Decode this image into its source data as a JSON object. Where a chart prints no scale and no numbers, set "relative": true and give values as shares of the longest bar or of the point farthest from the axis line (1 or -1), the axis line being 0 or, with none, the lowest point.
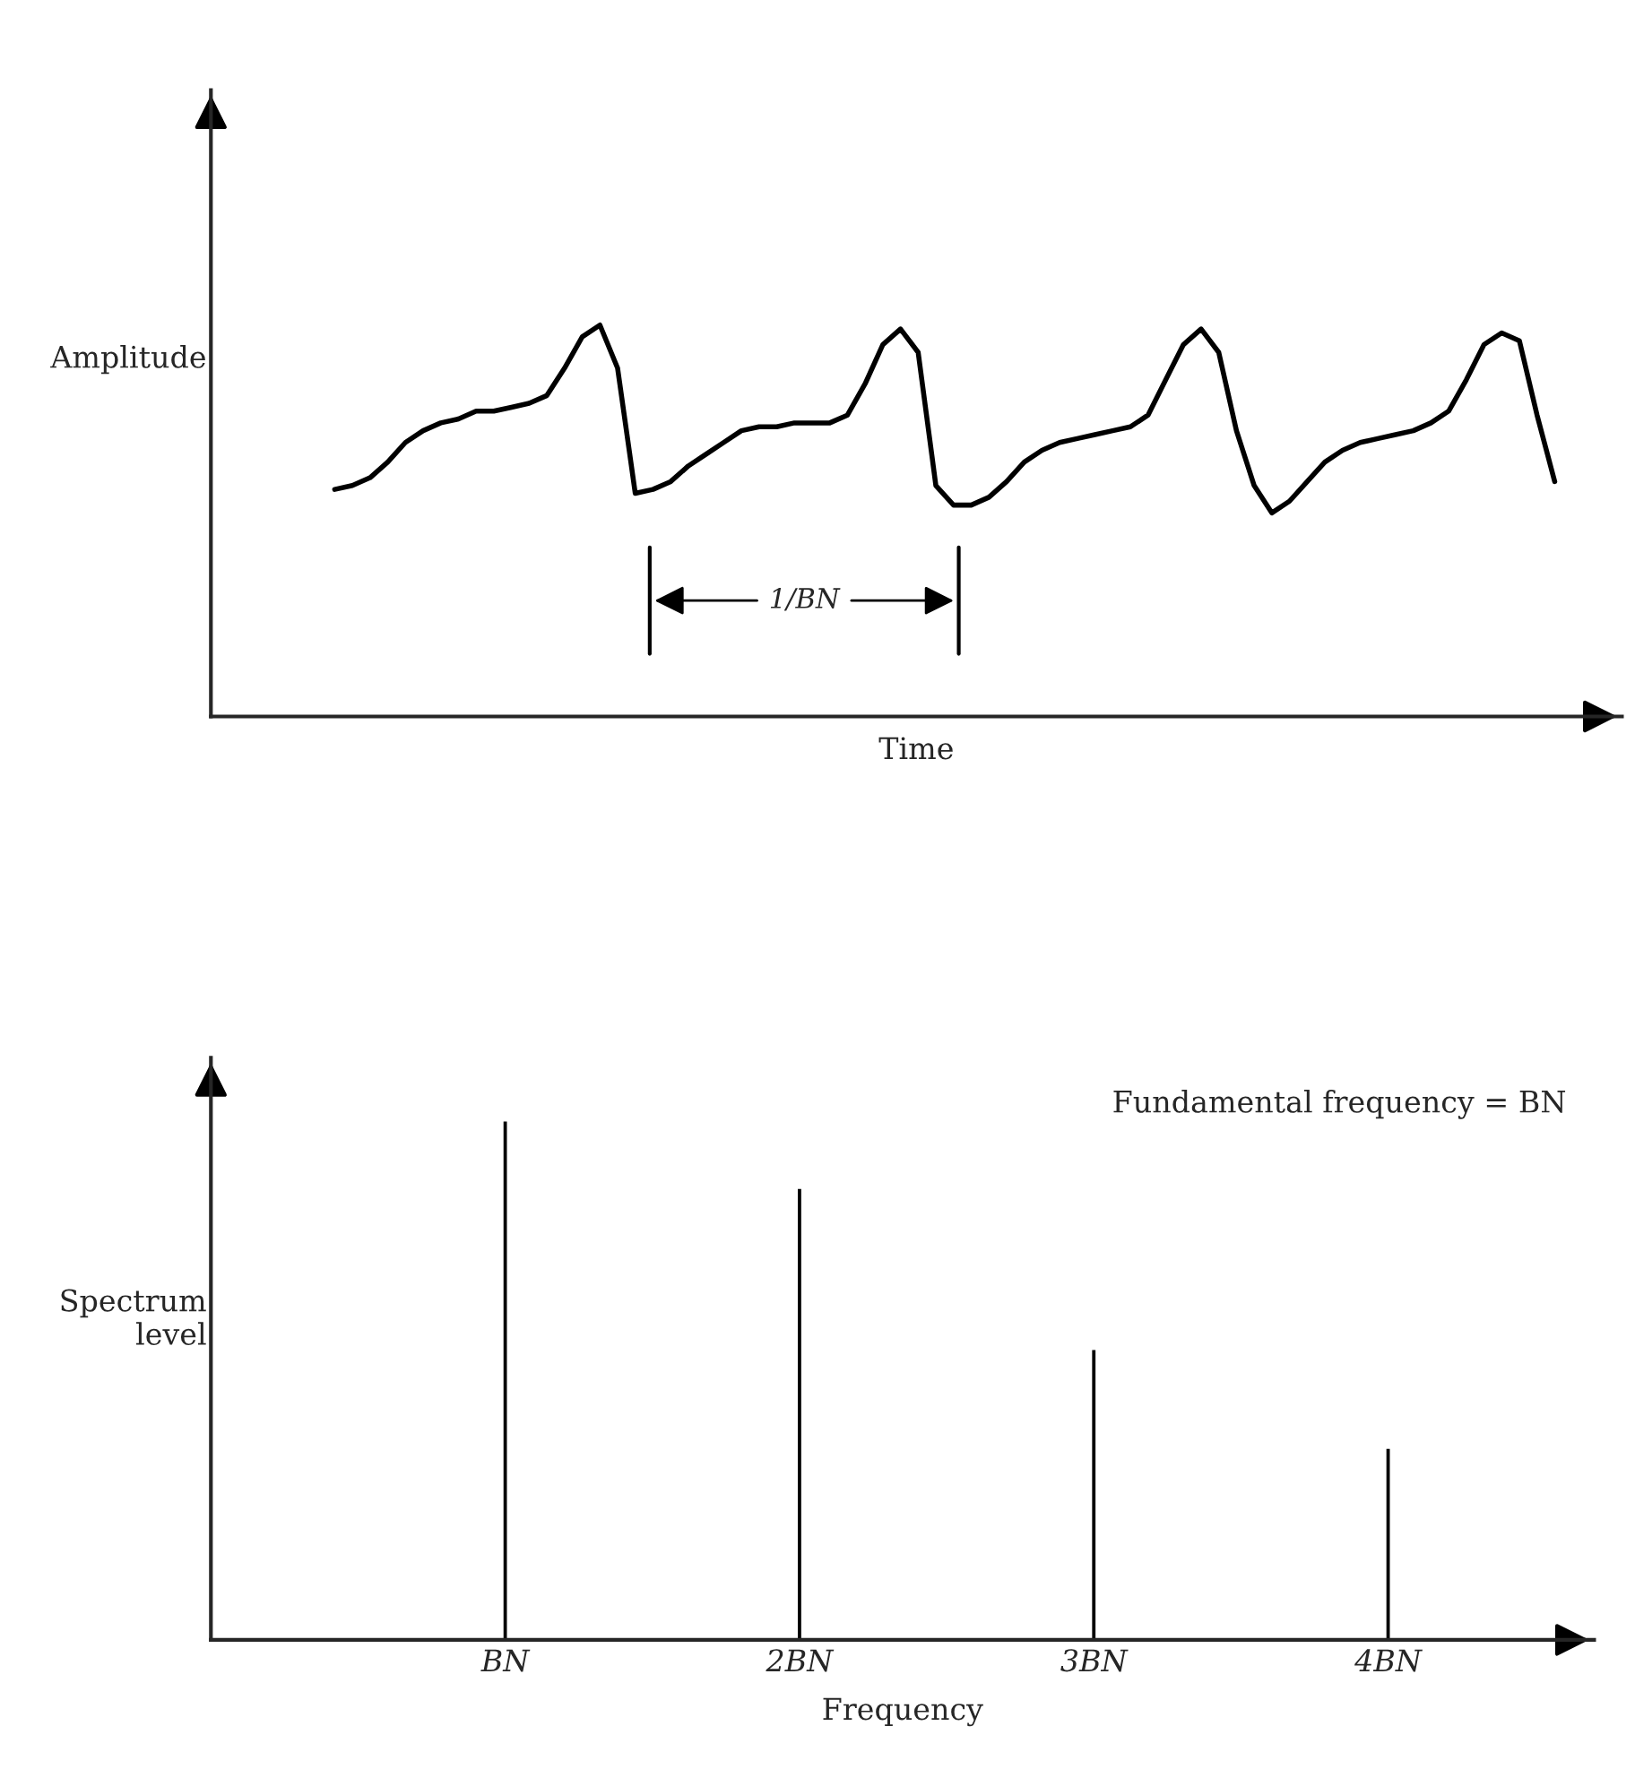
{
  "chart_data": [
    {
      "type": "line",
      "relative": true,
      "xlabel": "Time",
      "ylabel": "Amplitude",
      "color": "#000000",
      "categories": [
        null,
        null,
        null,
        null,
        null,
        null,
        null,
        null,
        null,
        null,
        null,
        null,
        null,
        null,
        null,
        null,
        null,
        null,
        null,
        null,
        null,
        null,
        null,
        null,
        null,
        null,
        null,
        null,
        null,
        null,
        null,
        null,
        null,
        null,
        null,
        null,
        null,
        null,
        null,
        null,
        null,
        null,
        null,
        null,
        null,
        null,
        null,
        null,
        null,
        null,
        null,
        null,
        null,
        null,
        null,
        null,
        null,
        null,
        null,
        null,
        null,
        null,
        null,
        null,
        null,
        null,
        null,
        null,
        null,
        null
      ],
      "values": [
        0.58,
        0.59,
        0.61,
        0.65,
        0.7,
        0.73,
        0.75,
        0.76,
        0.78,
        0.78,
        0.79,
        0.8,
        0.82,
        0.89,
        0.97,
        1.0,
        0.89,
        0.57,
        0.58,
        0.6,
        0.64,
        0.67,
        0.7,
        0.73,
        0.74,
        0.74,
        0.75,
        0.75,
        0.75,
        0.77,
        0.85,
        0.95,
        0.99,
        0.93,
        0.59,
        0.54,
        0.54,
        0.56,
        0.6,
        0.65,
        0.68,
        0.7,
        0.71,
        0.72,
        0.73,
        0.74,
        0.77,
        0.86,
        0.95,
        0.99,
        0.93,
        0.73,
        0.59,
        0.52,
        0.55,
        0.6,
        0.65,
        0.68,
        0.7,
        0.71,
        0.72,
        0.73,
        0.75,
        0.78,
        0.86,
        0.95,
        0.98,
        0.96,
        0.77,
        0.6
      ],
      "annotations": [
        "1/BN"
      ]
    },
    {
      "type": "bar",
      "relative": true,
      "xlabel": "Frequency",
      "ylabel": "Spectrum\nlevel",
      "color": "#000000",
      "categories": [
        "BN",
        "2BN",
        "3BN",
        "4BN"
      ],
      "values": [
        1.0,
        0.87,
        0.56,
        0.37
      ],
      "annotations": [
        "Fundamental frequency = BN"
      ]
    }
  ]
}
